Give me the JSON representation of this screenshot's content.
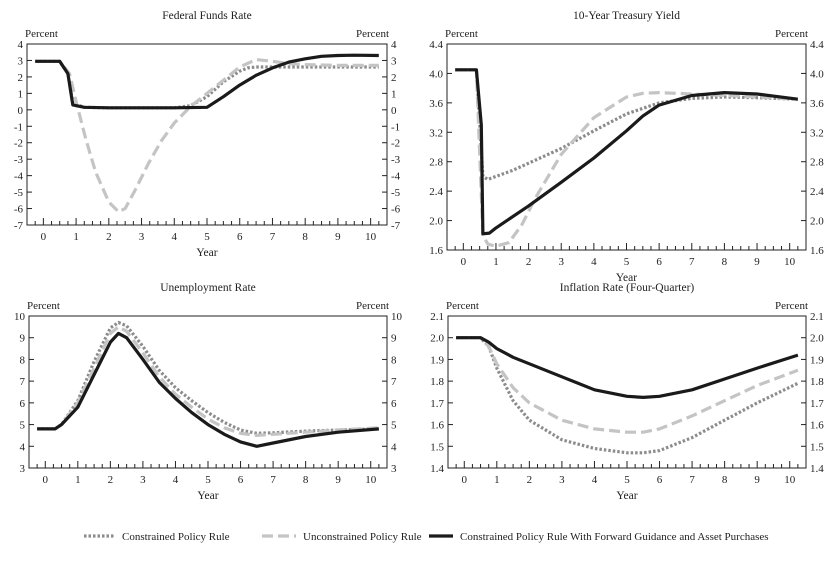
{
  "colors": {
    "constrained": "#8c8c8c",
    "unconstrained": "#c4c4c4",
    "forward_guidance": "#1a1a1a",
    "axis": "#222222"
  },
  "legend": {
    "constrained": "Constrained Policy Rule",
    "unconstrained": "Unconstrained Policy Rule",
    "forward_guidance": "Constrained Policy Rule With Forward Guidance and Asset Purchases"
  },
  "chart_data": [
    {
      "type": "line",
      "title": "Federal Funds Rate",
      "unit_left": "Percent",
      "unit_right": "Percent",
      "xlabel": "Year",
      "xlim": [
        -0.5,
        10.5
      ],
      "x_ticks": [
        0,
        1,
        2,
        3,
        4,
        5,
        6,
        7,
        8,
        9,
        10
      ],
      "ylim": [
        -7,
        4
      ],
      "y_ticks": [
        -7,
        -6,
        -5,
        -4,
        -3,
        -2,
        -1,
        0,
        1,
        2,
        3,
        4
      ],
      "y_tick_decimals": 0,
      "series": [
        {
          "key": "constrained",
          "x": [
            -0.25,
            0.5,
            0.75,
            0.9,
            1.25,
            2,
            3,
            4,
            4.5,
            5,
            5.5,
            6,
            6.25,
            6.5,
            7,
            8,
            9,
            10.25
          ],
          "y": [
            2.95,
            2.95,
            2.2,
            0.4,
            0.15,
            0.12,
            0.12,
            0.12,
            0.25,
            0.8,
            1.7,
            2.35,
            2.55,
            2.6,
            2.6,
            2.6,
            2.6,
            2.6
          ]
        },
        {
          "key": "unconstrained",
          "x": [
            -0.25,
            0.5,
            0.8,
            1,
            1.3,
            1.6,
            2,
            2.3,
            2.5,
            2.8,
            3.2,
            3.6,
            4,
            4.5,
            5,
            5.5,
            6,
            6.5,
            7,
            7.5,
            8,
            9,
            10.25
          ],
          "y": [
            2.95,
            2.95,
            2.2,
            0.5,
            -1.8,
            -3.8,
            -5.6,
            -6.2,
            -6.0,
            -4.9,
            -3.3,
            -1.9,
            -0.8,
            0.2,
            1.0,
            1.8,
            2.6,
            3.05,
            2.95,
            2.8,
            2.75,
            2.7,
            2.7
          ]
        },
        {
          "key": "forward_guidance",
          "x": [
            -0.25,
            0.5,
            0.75,
            0.9,
            1.25,
            2,
            3,
            4,
            5,
            5.5,
            6,
            6.5,
            7,
            7.5,
            8,
            8.5,
            9,
            9.5,
            10.25
          ],
          "y": [
            2.95,
            2.95,
            2.2,
            0.3,
            0.15,
            0.12,
            0.12,
            0.12,
            0.15,
            0.8,
            1.5,
            2.1,
            2.55,
            2.9,
            3.1,
            3.25,
            3.3,
            3.32,
            3.3
          ]
        }
      ]
    },
    {
      "type": "line",
      "title": "10-Year Treasury Yield",
      "unit_left": "Percent",
      "unit_right": "Percent",
      "xlabel": "Year",
      "xlim": [
        -0.5,
        10.5
      ],
      "x_ticks": [
        0,
        1,
        2,
        3,
        4,
        5,
        6,
        7,
        8,
        9,
        10
      ],
      "ylim": [
        1.6,
        4.4
      ],
      "y_ticks": [
        1.6,
        2.0,
        2.4,
        2.8,
        3.2,
        3.6,
        4.0,
        4.4
      ],
      "y_tick_decimals": 1,
      "series": [
        {
          "key": "constrained",
          "x": [
            -0.25,
            0.4,
            0.6,
            0.75,
            1,
            1.5,
            2,
            3,
            4,
            5,
            6,
            7,
            8,
            9,
            10.25
          ],
          "y": [
            4.05,
            4.05,
            2.6,
            2.56,
            2.6,
            2.68,
            2.78,
            2.98,
            3.22,
            3.45,
            3.6,
            3.66,
            3.68,
            3.67,
            3.65
          ]
        },
        {
          "key": "unconstrained",
          "x": [
            -0.25,
            0.4,
            0.6,
            0.75,
            1,
            1.4,
            1.8,
            2.2,
            3,
            4,
            5,
            5.5,
            6,
            7,
            8,
            9,
            10.25
          ],
          "y": [
            4.05,
            4.05,
            1.8,
            1.68,
            1.65,
            1.7,
            1.95,
            2.3,
            2.9,
            3.4,
            3.68,
            3.73,
            3.74,
            3.72,
            3.7,
            3.68,
            3.65
          ]
        },
        {
          "key": "forward_guidance",
          "x": [
            -0.25,
            0.4,
            0.55,
            0.6,
            0.8,
            1,
            2,
            3,
            4,
            5,
            5.5,
            6,
            7,
            8,
            9,
            10.25
          ],
          "y": [
            4.05,
            4.05,
            3.3,
            1.82,
            1.83,
            1.9,
            2.2,
            2.52,
            2.85,
            3.22,
            3.42,
            3.57,
            3.7,
            3.74,
            3.72,
            3.65
          ]
        }
      ]
    },
    {
      "type": "line",
      "title": "Unemployment Rate",
      "unit_left": "Percent",
      "unit_right": "Percent",
      "xlabel": "Year",
      "xlim": [
        -0.5,
        10.5
      ],
      "x_ticks": [
        0,
        1,
        2,
        3,
        4,
        5,
        6,
        7,
        8,
        9,
        10
      ],
      "ylim": [
        3,
        10
      ],
      "y_ticks": [
        3,
        4,
        5,
        6,
        7,
        8,
        9,
        10
      ],
      "y_tick_decimals": 0,
      "series": [
        {
          "key": "constrained",
          "x": [
            -0.25,
            0.3,
            0.5,
            1,
            1.5,
            2,
            2.25,
            2.5,
            3,
            3.5,
            4,
            4.5,
            5,
            5.5,
            6,
            6.5,
            7,
            8,
            9,
            10.25
          ],
          "y": [
            4.8,
            4.8,
            5.0,
            6.1,
            7.9,
            9.45,
            9.7,
            9.55,
            8.6,
            7.5,
            6.7,
            6.1,
            5.55,
            5.1,
            4.75,
            4.6,
            4.62,
            4.7,
            4.75,
            4.8
          ]
        },
        {
          "key": "unconstrained",
          "x": [
            -0.25,
            0.3,
            0.5,
            1,
            1.5,
            2,
            2.25,
            2.5,
            3,
            3.5,
            4,
            4.5,
            5,
            5.5,
            6,
            6.5,
            7,
            8,
            9,
            10.25
          ],
          "y": [
            4.8,
            4.8,
            5.0,
            6.0,
            7.6,
            9.2,
            9.5,
            9.3,
            8.3,
            7.2,
            6.4,
            5.8,
            5.25,
            4.85,
            4.6,
            4.5,
            4.55,
            4.65,
            4.75,
            4.85
          ]
        },
        {
          "key": "forward_guidance",
          "x": [
            -0.25,
            0.3,
            0.5,
            1,
            1.5,
            2,
            2.25,
            2.5,
            3,
            3.5,
            4,
            4.5,
            5,
            5.5,
            6,
            6.5,
            7,
            8,
            9,
            10.25
          ],
          "y": [
            4.8,
            4.8,
            5.0,
            5.8,
            7.3,
            8.8,
            9.2,
            9.0,
            8.0,
            6.95,
            6.2,
            5.55,
            5.0,
            4.55,
            4.2,
            4.0,
            4.15,
            4.45,
            4.65,
            4.8
          ]
        }
      ]
    },
    {
      "type": "line",
      "title": "Inflation Rate (Four-Quarter)",
      "unit_left": "Percent",
      "unit_right": "Percent",
      "xlabel": "Year",
      "xlim": [
        -0.5,
        10.5
      ],
      "x_ticks": [
        0,
        1,
        2,
        3,
        4,
        5,
        6,
        7,
        8,
        9,
        10
      ],
      "ylim": [
        1.4,
        2.1
      ],
      "y_ticks": [
        1.4,
        1.5,
        1.6,
        1.7,
        1.8,
        1.9,
        2.0,
        2.1
      ],
      "y_tick_decimals": 1,
      "series": [
        {
          "key": "constrained",
          "x": [
            -0.25,
            0.5,
            0.75,
            1,
            1.5,
            2,
            3,
            4,
            5,
            5.5,
            6,
            7,
            8,
            9,
            10.25
          ],
          "y": [
            2.0,
            2.0,
            1.96,
            1.86,
            1.71,
            1.62,
            1.53,
            1.49,
            1.47,
            1.47,
            1.48,
            1.54,
            1.62,
            1.7,
            1.79
          ]
        },
        {
          "key": "unconstrained",
          "x": [
            -0.25,
            0.5,
            0.75,
            1,
            1.5,
            2,
            3,
            4,
            5,
            5.5,
            6,
            7,
            8,
            9,
            10.25
          ],
          "y": [
            2.0,
            2.0,
            1.96,
            1.88,
            1.77,
            1.7,
            1.62,
            1.58,
            1.565,
            1.565,
            1.58,
            1.64,
            1.71,
            1.78,
            1.85
          ]
        },
        {
          "key": "forward_guidance",
          "x": [
            -0.25,
            0.5,
            0.75,
            1,
            1.5,
            2,
            3,
            4,
            5,
            5.5,
            6,
            7,
            8,
            9,
            10.25
          ],
          "y": [
            2.0,
            2.0,
            1.98,
            1.95,
            1.91,
            1.88,
            1.82,
            1.76,
            1.73,
            1.725,
            1.73,
            1.76,
            1.81,
            1.86,
            1.92
          ]
        }
      ]
    }
  ]
}
